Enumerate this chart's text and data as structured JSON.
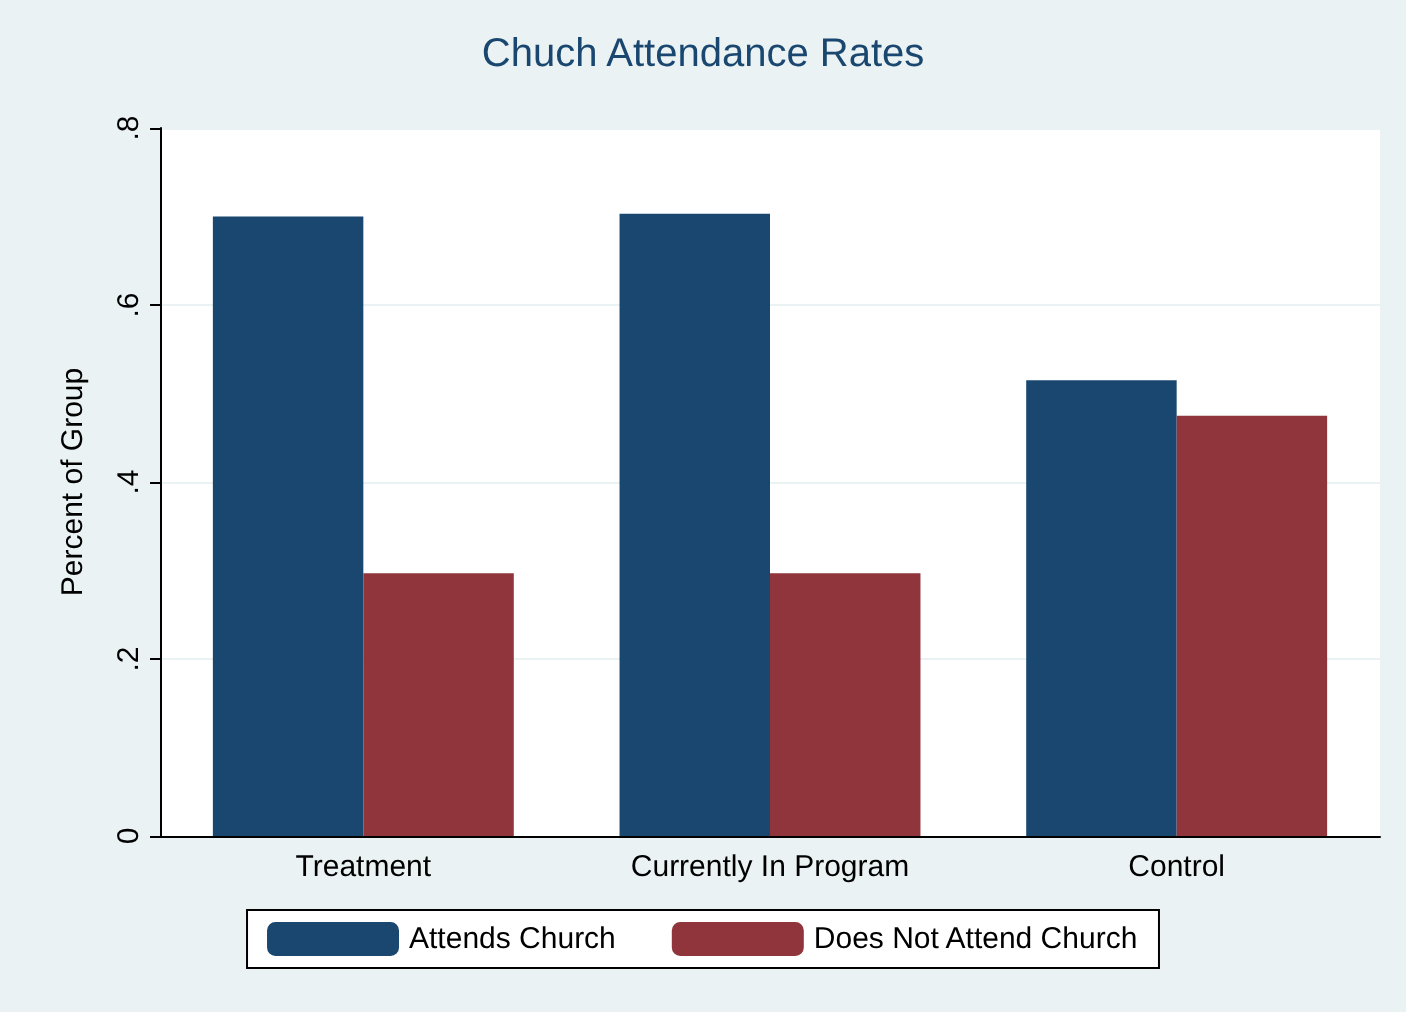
{
  "chart_data": {
    "type": "bar",
    "title": "Chuch Attendance Rates",
    "ylabel": "Percent of Group",
    "categories": [
      "Treatment",
      "Currently In Program",
      "Control"
    ],
    "series": [
      {
        "name": "Attends Church",
        "color": "#1a476f",
        "values": [
          0.7,
          0.703,
          0.515
        ]
      },
      {
        "name": "Does Not Attend Church",
        "color": "#90353b",
        "values": [
          0.297,
          0.297,
          0.475
        ]
      }
    ],
    "ylim": [
      0,
      0.8
    ],
    "yticks": [
      {
        "value": 0,
        "label": "0"
      },
      {
        "value": 0.2,
        "label": ".2"
      },
      {
        "value": 0.4,
        "label": ".4"
      },
      {
        "value": 0.6,
        "label": ".6"
      },
      {
        "value": 0.8,
        "label": ".8"
      }
    ],
    "grid": "y",
    "legend": "bottom"
  }
}
